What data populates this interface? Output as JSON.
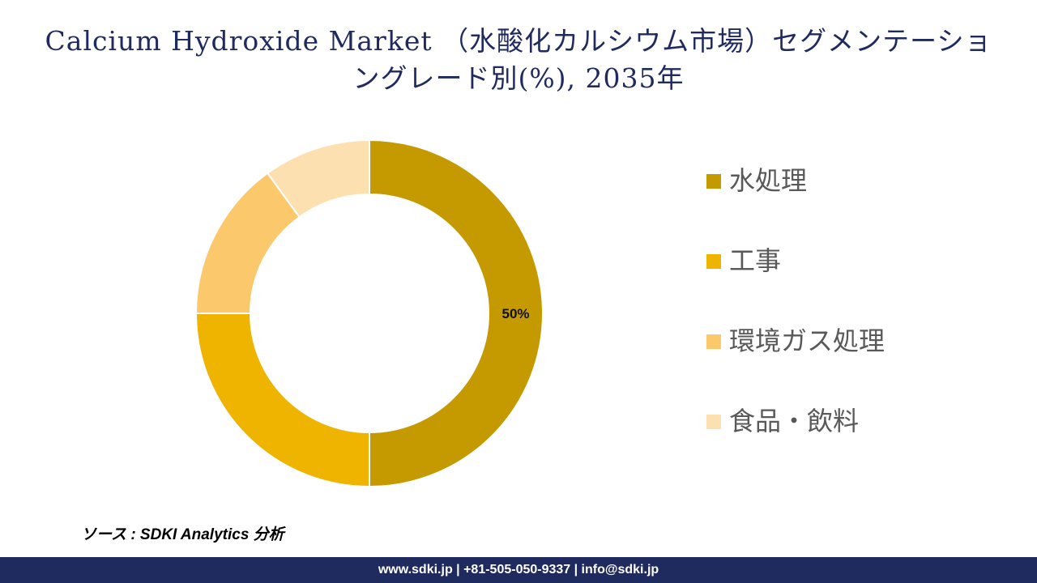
{
  "header": {
    "title": "Calcium Hydroxide Market （水酸化カルシウム市場）セグメンテーショングレード別(%), 2035年"
  },
  "chart_data": {
    "type": "pie",
    "donut": true,
    "title": "Calcium Hydroxide Market （水酸化カルシウム市場）セグメンテーショングレード別(%), 2035年",
    "categories": [
      "水処理",
      "工事",
      "環境ガス処理",
      "食品・飲料"
    ],
    "values": [
      50,
      25,
      15,
      10
    ],
    "data_labels": [
      "50%",
      "",
      "",
      ""
    ],
    "colors": [
      "#c49a00",
      "#eeb400",
      "#fbc96c",
      "#fde0b0"
    ],
    "legend_position": "right"
  },
  "source": "ソース : SDKI Analytics 分析",
  "footer": "www.sdki.jp | +81-505-050-9337 | info@sdki.jp"
}
